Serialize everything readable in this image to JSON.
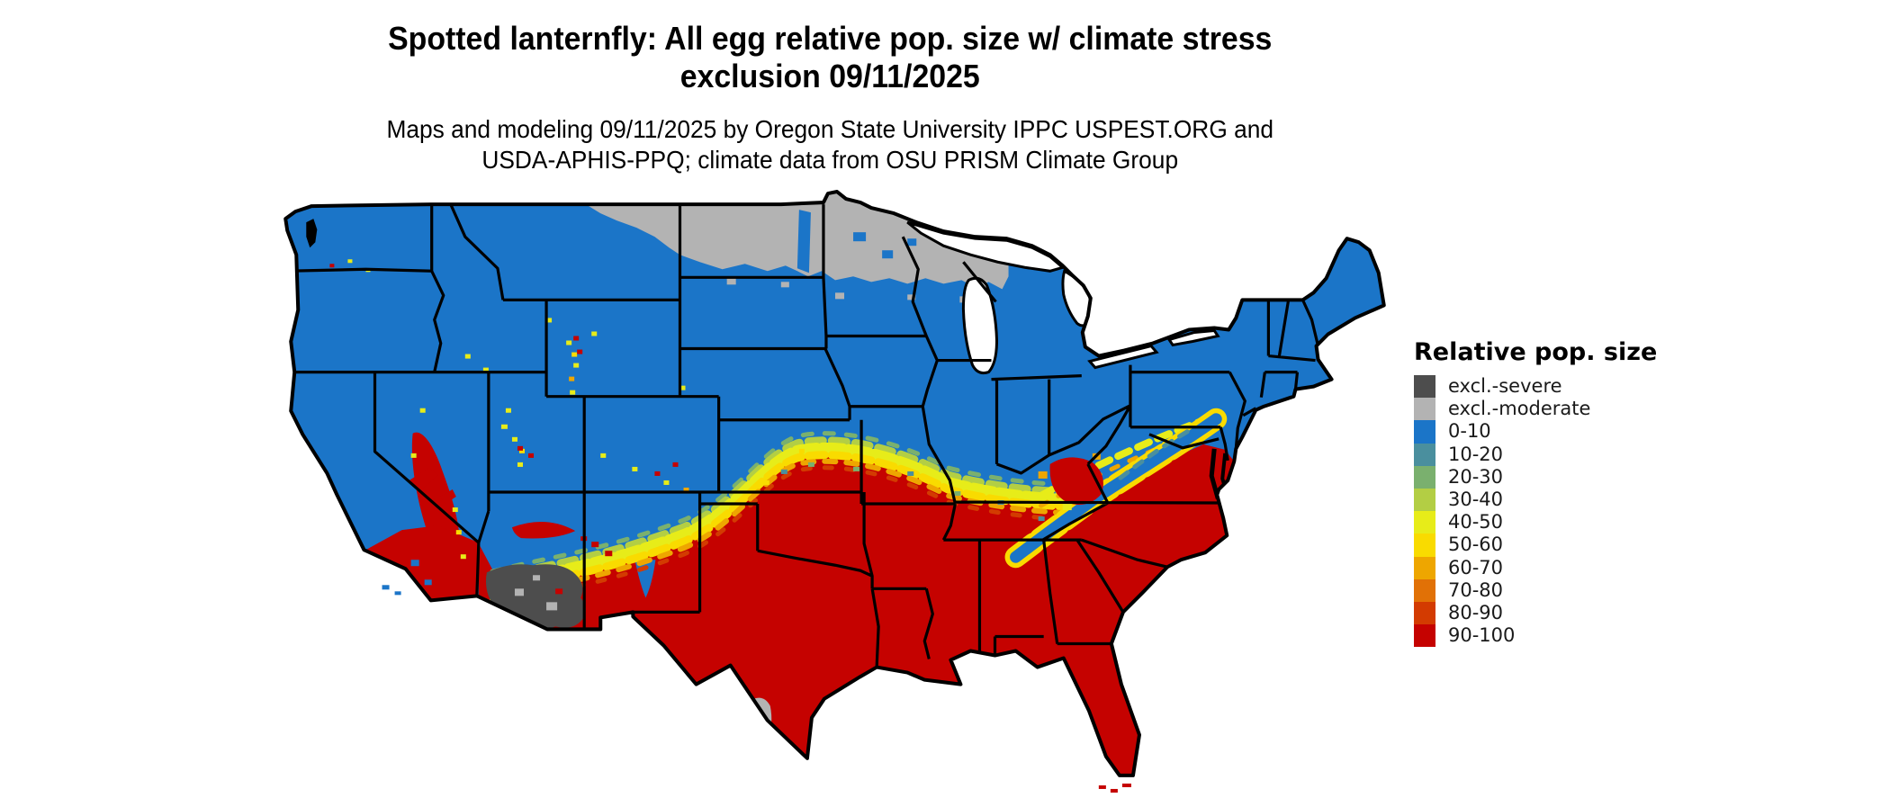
{
  "header": {
    "title_line1": "Spotted lanternfly: All egg relative pop. size w/ climate stress",
    "title_line2": "exclusion 09/11/2025",
    "subtitle_line1": "Maps and modeling 09/11/2025 by Oregon State University IPPC USPEST.ORG and",
    "subtitle_line2": "USDA-APHIS-PPQ; climate data from OSU PRISM Climate Group"
  },
  "legend": {
    "title": "Relative pop. size",
    "items": [
      {
        "label": "excl.-severe",
        "color": "#4D4D4D",
        "key": "excl_severe"
      },
      {
        "label": "excl.-moderate",
        "color": "#B3B3B3",
        "key": "excl_moderate"
      },
      {
        "label": "0-10",
        "color": "#1B75C8",
        "key": "p0_10"
      },
      {
        "label": "10-20",
        "color": "#4A8F9E",
        "key": "p10_20"
      },
      {
        "label": "20-30",
        "color": "#7AB06E",
        "key": "p20_30"
      },
      {
        "label": "30-40",
        "color": "#B3CE44",
        "key": "p30_40"
      },
      {
        "label": "40-50",
        "color": "#E7EC19",
        "key": "p40_50"
      },
      {
        "label": "50-60",
        "color": "#F9DB00",
        "key": "p50_60"
      },
      {
        "label": "60-70",
        "color": "#EEA600",
        "key": "p60_70"
      },
      {
        "label": "70-80",
        "color": "#E17106",
        "key": "p70_80"
      },
      {
        "label": "80-90",
        "color": "#D33B01",
        "key": "p80_90"
      },
      {
        "label": "90-100",
        "color": "#C50200",
        "key": "p90_100"
      }
    ]
  },
  "map": {
    "palette": {
      "excl_severe": "#4D4D4D",
      "excl_moderate": "#B3B3B3",
      "p0_10": "#1B75C8",
      "p10_20": "#4A8F9E",
      "p20_30": "#7AB06E",
      "p30_40": "#B3CE44",
      "p40_50": "#E7EC19",
      "p50_60": "#F9DB00",
      "p60_70": "#EEA600",
      "p70_80": "#E17106",
      "p80_90": "#D33B01",
      "p90_100": "#C50200",
      "water": "#FFFFFF",
      "border": "#000000"
    },
    "regions": [
      {
        "name": "northern-exclusion-band",
        "category": "excl.-moderate",
        "areas": "northeastern Montana, North Dakota, northern Minnesota, northern Wisconsin"
      },
      {
        "name": "low-population-north",
        "category": "0-10",
        "areas": "Pacific Northwest, northern Rockies, upper Midwest, Great Lakes states, Northeast"
      },
      {
        "name": "high-population-south",
        "category": "90-100",
        "areas": "California valleys, southern Southwest, Texas, lower Midwest, Southeast, Mid-Atlantic coastal plain"
      },
      {
        "name": "severe-exclusion-desert",
        "category": "excl.-severe",
        "areas": "southern Arizona desert"
      },
      {
        "name": "moderate-exclusion-big-bend",
        "category": "excl.-moderate",
        "areas": "southwest Texas Big Bend"
      },
      {
        "name": "transition-band",
        "category": "10-90 mixed",
        "areas": "central Plains through Ohio Valley to Virginia"
      },
      {
        "name": "appalachian-corridor",
        "category": "0-10",
        "areas": "southern Appalachians from eastern Pennsylvania to east Tennessee"
      }
    ]
  }
}
